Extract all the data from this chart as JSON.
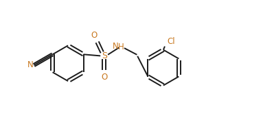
{
  "bg_color": "#ffffff",
  "line_color": "#1a1a1a",
  "label_color_dark": "#1a1a1a",
  "label_color_orange": "#c87820",
  "figsize": [
    3.99,
    1.72
  ],
  "dpi": 100,
  "lw": 1.4,
  "ring_r": 0.62,
  "xlim": [
    0,
    9.5
  ],
  "ylim": [
    0,
    4.0
  ]
}
